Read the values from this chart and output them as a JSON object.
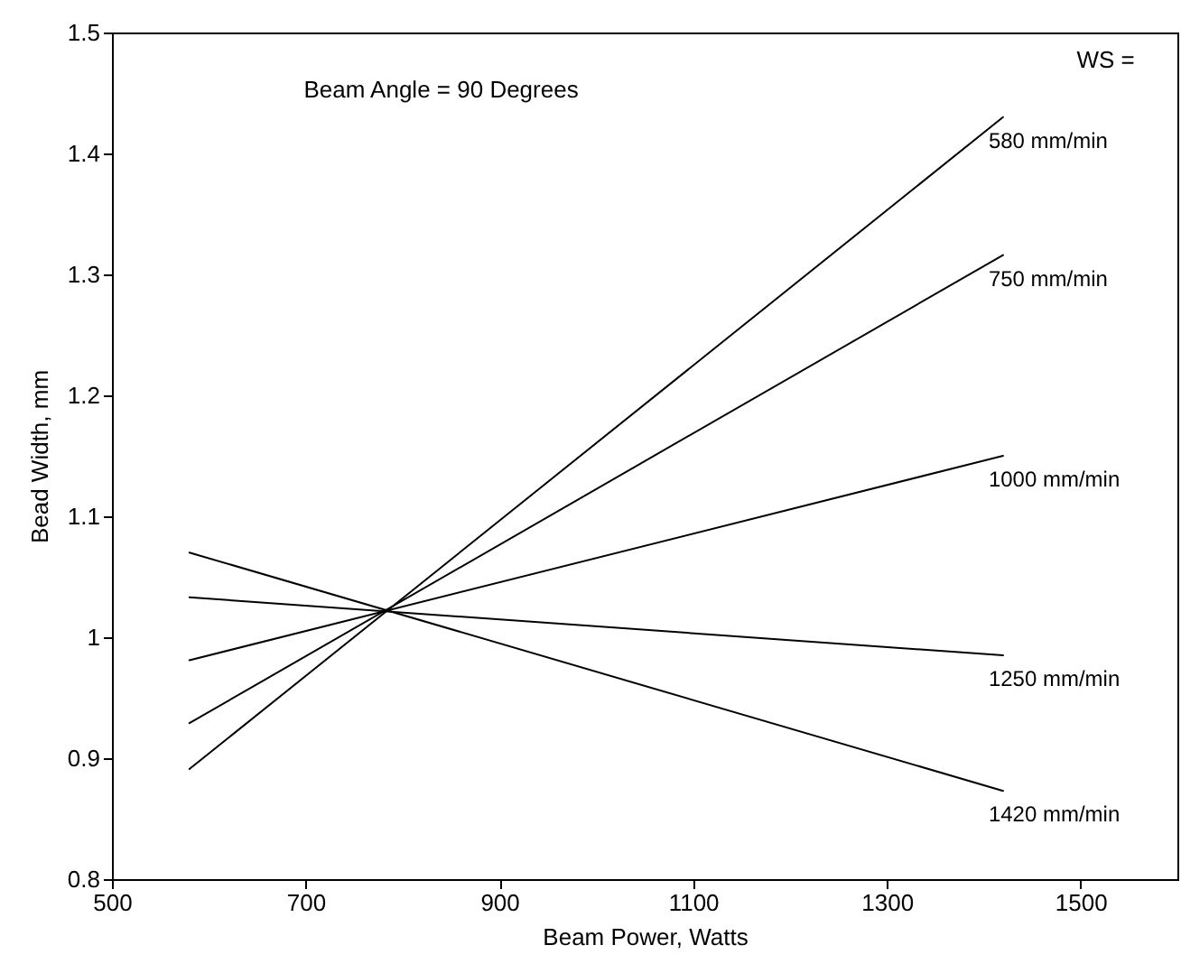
{
  "chart_data": {
    "type": "line",
    "xlabel": "Beam Power, Watts",
    "ylabel": "Bead Width, mm",
    "annotations": [
      "Beam Angle = 90 Degrees",
      "WS ="
    ],
    "x": [
      580,
      1420
    ],
    "series": [
      {
        "name": "580 mm/min",
        "color": "#000000",
        "values": [
          0.891,
          1.43
        ]
      },
      {
        "name": "750 mm/min",
        "color": "#000000",
        "values": [
          0.929,
          1.316
        ]
      },
      {
        "name": "1000 mm/min",
        "color": "#000000",
        "values": [
          0.981,
          1.15
        ]
      },
      {
        "name": "1250 mm/min",
        "color": "#000000",
        "values": [
          1.033,
          0.985
        ]
      },
      {
        "name": "1420 mm/min",
        "color": "#000000",
        "values": [
          1.07,
          0.873
        ]
      }
    ],
    "xlim": [
      500,
      1600
    ],
    "xticks": [
      500,
      700,
      900,
      1100,
      1300,
      1500
    ],
    "ylim": [
      0.8,
      1.5
    ],
    "yticks": [
      0.8,
      0.9,
      1,
      1.1,
      1.2,
      1.3,
      1.4,
      1.5
    ],
    "grid": false,
    "marker": "none",
    "line_style": "solid"
  }
}
